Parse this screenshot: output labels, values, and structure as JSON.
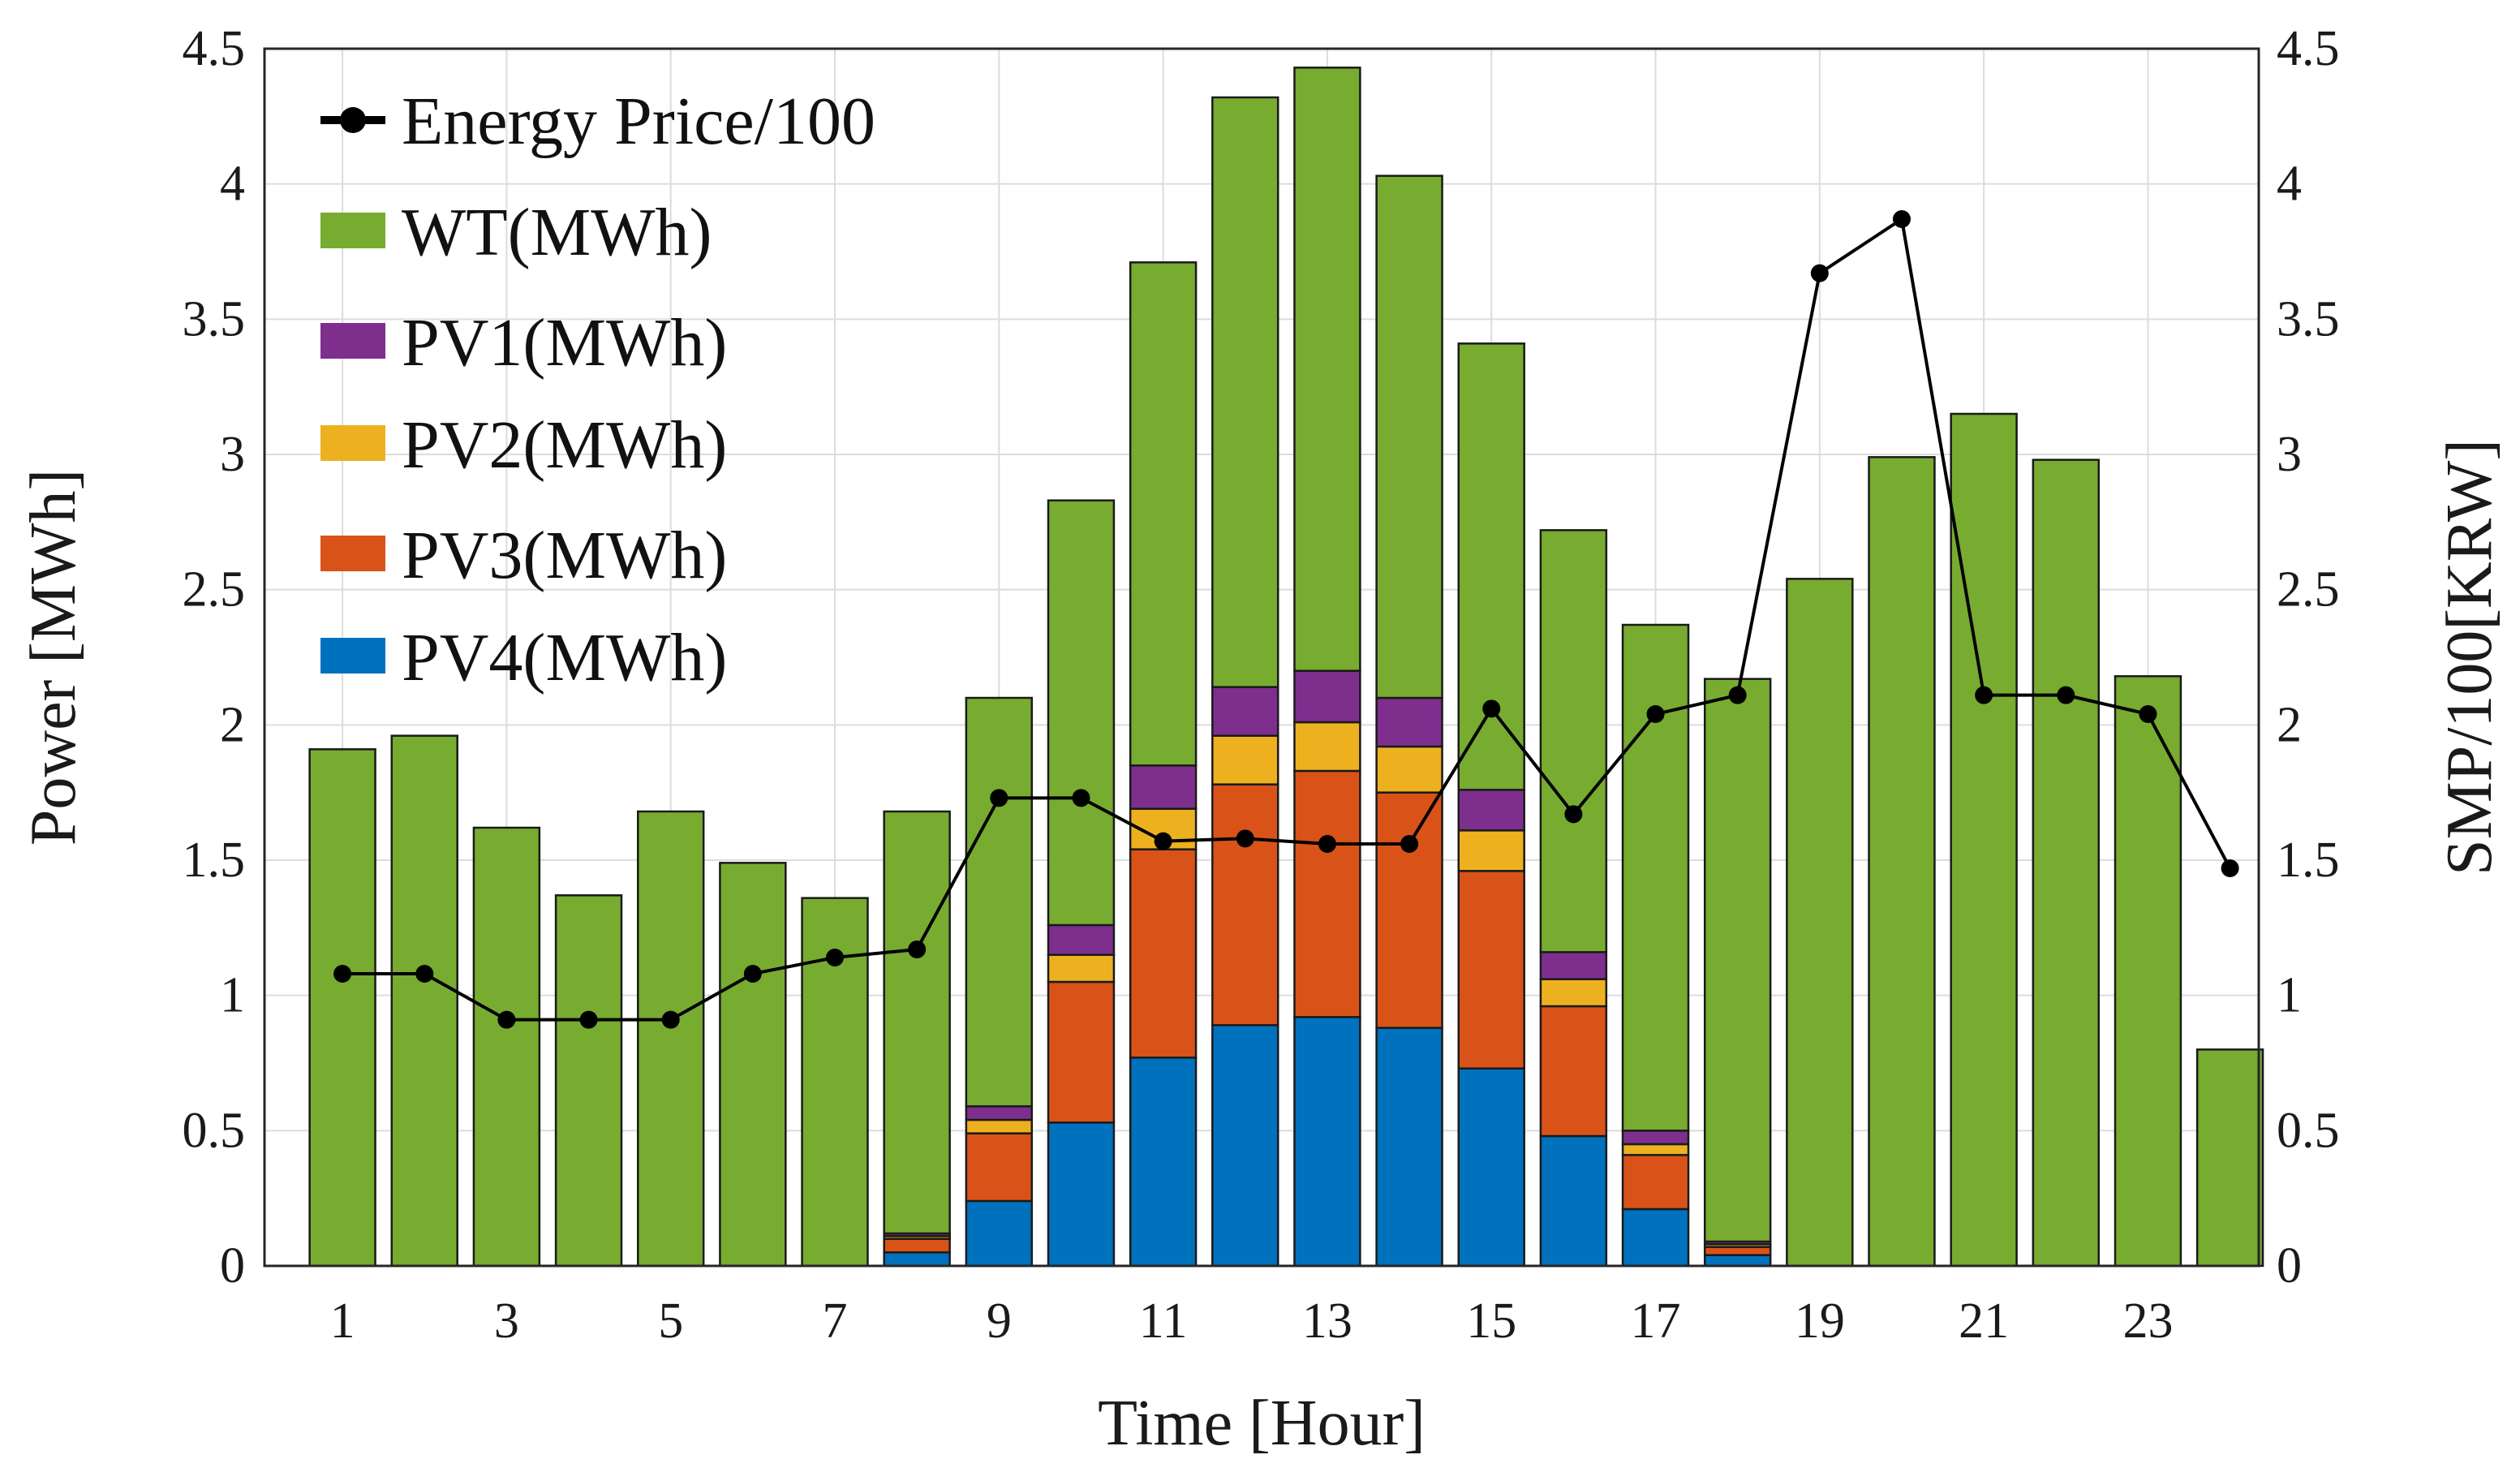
{
  "chart_data": {
    "type": "bar",
    "stacked": true,
    "x": [
      1,
      2,
      3,
      4,
      5,
      6,
      7,
      8,
      9,
      10,
      11,
      12,
      13,
      14,
      15,
      16,
      17,
      18,
      19,
      20,
      21,
      22,
      23,
      24
    ],
    "x_tick_labels": [
      "1",
      "3",
      "5",
      "7",
      "9",
      "11",
      "13",
      "15",
      "17",
      "19",
      "21",
      "23"
    ],
    "xlabel": "Time [Hour]",
    "ylabel": "Power [MWh]",
    "ylabel_right": "SMP/100[KRW]",
    "ylim": [
      0,
      4.5
    ],
    "ylim_right": [
      0,
      4.5
    ],
    "y_tick_labels": [
      "0",
      "0.5",
      "1",
      "1.5",
      "2",
      "2.5",
      "3",
      "3.5",
      "4",
      "4.5"
    ],
    "grid": true,
    "legend_position": "top-left",
    "series": [
      {
        "name": "PV4(MWh)",
        "color": "#0072BD",
        "values": [
          0,
          0,
          0,
          0,
          0,
          0,
          0,
          0.05,
          0.24,
          0.53,
          0.77,
          0.89,
          0.92,
          0.88,
          0.73,
          0.48,
          0.21,
          0.04,
          0,
          0,
          0,
          0,
          0,
          0
        ]
      },
      {
        "name": "PV3(MWh)",
        "color": "#D95319",
        "values": [
          0,
          0,
          0,
          0,
          0,
          0,
          0,
          0.05,
          0.25,
          0.52,
          0.77,
          0.89,
          0.91,
          0.87,
          0.73,
          0.48,
          0.2,
          0.03,
          0,
          0,
          0,
          0,
          0,
          0
        ]
      },
      {
        "name": "PV2(MWh)",
        "color": "#EDB120",
        "values": [
          0,
          0,
          0,
          0,
          0,
          0,
          0,
          0.01,
          0.05,
          0.1,
          0.15,
          0.18,
          0.18,
          0.17,
          0.15,
          0.1,
          0.04,
          0.01,
          0,
          0,
          0,
          0,
          0,
          0
        ]
      },
      {
        "name": "PV1(MWh)",
        "color": "#7E2F8E",
        "values": [
          0,
          0,
          0,
          0,
          0,
          0,
          0,
          0.01,
          0.05,
          0.11,
          0.16,
          0.18,
          0.19,
          0.18,
          0.15,
          0.1,
          0.05,
          0.01,
          0,
          0,
          0,
          0,
          0,
          0
        ]
      },
      {
        "name": "WT(MWh)",
        "color": "#77AC30",
        "values": [
          1.91,
          1.96,
          1.62,
          1.37,
          1.68,
          1.49,
          1.36,
          1.56,
          1.51,
          1.57,
          1.86,
          2.18,
          2.23,
          1.93,
          1.65,
          1.56,
          1.87,
          2.08,
          2.54,
          2.99,
          3.15,
          2.98,
          2.18,
          0.8
        ]
      }
    ],
    "line_series": {
      "name": "Energy Price/100",
      "color": "#000000",
      "axis": "right",
      "values": [
        1.08,
        1.08,
        0.91,
        0.91,
        0.91,
        1.08,
        1.14,
        1.17,
        1.73,
        1.73,
        1.57,
        1.58,
        1.56,
        1.56,
        2.06,
        1.67,
        2.04,
        2.11,
        3.67,
        3.87,
        2.11,
        2.11,
        2.04,
        1.47
      ]
    },
    "legend_order": [
      "Energy Price/100",
      "WT(MWh)",
      "PV1(MWh)",
      "PV2(MWh)",
      "PV3(MWh)",
      "PV4(MWh)"
    ]
  }
}
